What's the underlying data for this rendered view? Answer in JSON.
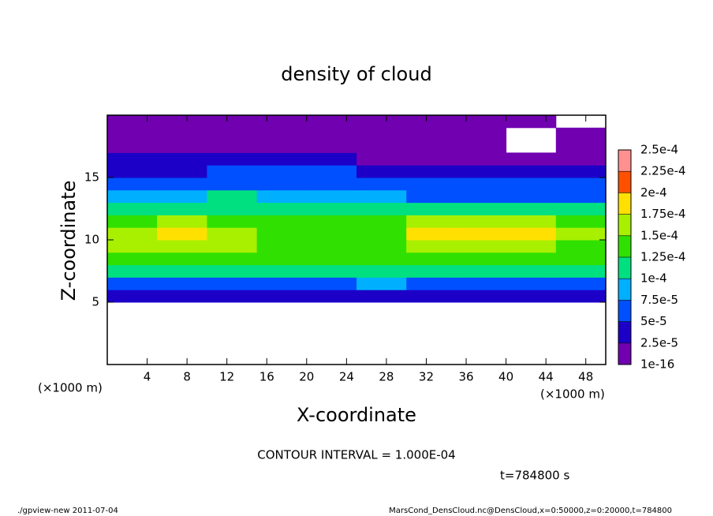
{
  "chart_data": {
    "type": "heatmap",
    "title": "density of cloud",
    "xlabel": "X-coordinate",
    "ylabel": "Z-coordinate",
    "x_unit": "(×1000 m)",
    "y_unit": "(×1000 m)",
    "xlim": [
      0,
      50
    ],
    "ylim": [
      0,
      20
    ],
    "xticks": [
      4,
      8,
      12,
      16,
      20,
      24,
      28,
      32,
      36,
      40,
      44,
      48
    ],
    "yticks": [
      5,
      10,
      15
    ],
    "x": [
      2.5,
      7.5,
      12.5,
      17.5,
      22.5,
      27.5,
      32.5,
      37.5,
      42.5,
      47.5
    ],
    "y": [
      5.5,
      6.5,
      7.5,
      8.5,
      9.5,
      10.5,
      11.5,
      12.5,
      13.5,
      14.5,
      15.5,
      16.5,
      17.5,
      18.5,
      19.5
    ],
    "z": [
      [
        3e-05,
        3e-05,
        3e-05,
        3e-05,
        3e-05,
        4e-05,
        3e-05,
        3e-05,
        3e-05,
        3e-05
      ],
      [
        7e-05,
        7e-05,
        7e-05,
        7e-05,
        7e-05,
        8e-05,
        7e-05,
        7e-05,
        7e-05,
        7e-05
      ],
      [
        0.00011,
        0.00011,
        0.00011,
        0.00011,
        0.0001,
        0.00011,
        0.00011,
        0.00011,
        0.00011,
        0.00011
      ],
      [
        0.00013,
        0.00014,
        0.00013,
        0.00013,
        0.00013,
        0.00013,
        0.00014,
        0.00014,
        0.00013,
        0.00013
      ],
      [
        0.00015,
        0.00017,
        0.00015,
        0.00014,
        0.00014,
        0.00014,
        0.00016,
        0.00017,
        0.00016,
        0.00014
      ],
      [
        0.00016,
        0.00018,
        0.00015,
        0.00014,
        0.00014,
        0.00014,
        0.00018,
        0.00019,
        0.00018,
        0.00015
      ],
      [
        0.00014,
        0.00015,
        0.00014,
        0.00013,
        0.00013,
        0.00013,
        0.00016,
        0.00017,
        0.00017,
        0.00014
      ],
      [
        0.00012,
        0.00012,
        0.00012,
        0.00012,
        0.00011,
        0.00011,
        0.00011,
        0.00011,
        0.00011,
        0.0001
      ],
      [
        9e-05,
        9e-05,
        0.0001,
        9e-05,
        9e-05,
        8e-05,
        7e-05,
        7e-05,
        7e-05,
        7e-05
      ],
      [
        6e-05,
        6e-05,
        7e-05,
        7e-05,
        7e-05,
        6e-05,
        5e-05,
        5e-05,
        5e-05,
        5e-05
      ],
      [
        4e-05,
        4e-05,
        5e-05,
        5e-05,
        5e-05,
        4e-05,
        3e-05,
        3e-05,
        3e-05,
        3e-05
      ],
      [
        3e-05,
        3e-05,
        3e-05,
        3e-05,
        3e-05,
        2e-05,
        2e-05,
        1e-05,
        1e-05,
        1e-05
      ],
      [
        2e-05,
        2e-05,
        2e-05,
        2e-05,
        2e-05,
        2e-05,
        1e-05,
        1e-05,
        0,
        1e-05
      ],
      [
        1e-05,
        1e-05,
        1e-05,
        1e-05,
        1e-05,
        1e-05,
        1e-05,
        1e-05,
        0,
        1e-05
      ],
      [
        1e-05,
        1e-05,
        1e-05,
        1e-05,
        1e-05,
        1e-05,
        1e-05,
        1e-05,
        1e-05,
        0
      ]
    ],
    "colorbar": {
      "levels": [
        {
          "value": 1e-16,
          "label": "1e-16"
        },
        {
          "value": 2.5e-05,
          "label": "2.5e-5"
        },
        {
          "value": 5e-05,
          "label": "5e-5"
        },
        {
          "value": 7.5e-05,
          "label": "7.5e-5"
        },
        {
          "value": 0.0001,
          "label": "1e-4"
        },
        {
          "value": 0.000125,
          "label": "1.25e-4"
        },
        {
          "value": 0.00015,
          "label": "1.5e-4"
        },
        {
          "value": 0.000175,
          "label": "1.75e-4"
        },
        {
          "value": 0.0002,
          "label": "2e-4"
        },
        {
          "value": 0.000225,
          "label": "2.25e-4"
        },
        {
          "value": 0.00025,
          "label": "2.5e-4"
        }
      ],
      "colors": [
        "#7000b0",
        "#1c00c8",
        "#0050ff",
        "#00b0ff",
        "#00e080",
        "#30e000",
        "#a8f000",
        "#ffe000",
        "#ff5000",
        "#ff9090"
      ]
    },
    "contour_note": "CONTOUR INTERVAL = 1.000E-04",
    "time_label": "t=784800 s",
    "footer_left": "./gpview-new  2011-07-04",
    "footer_right": "MarsCond_DensCloud.nc@DensCloud,x=0:50000,z=0:20000,t=784800"
  }
}
